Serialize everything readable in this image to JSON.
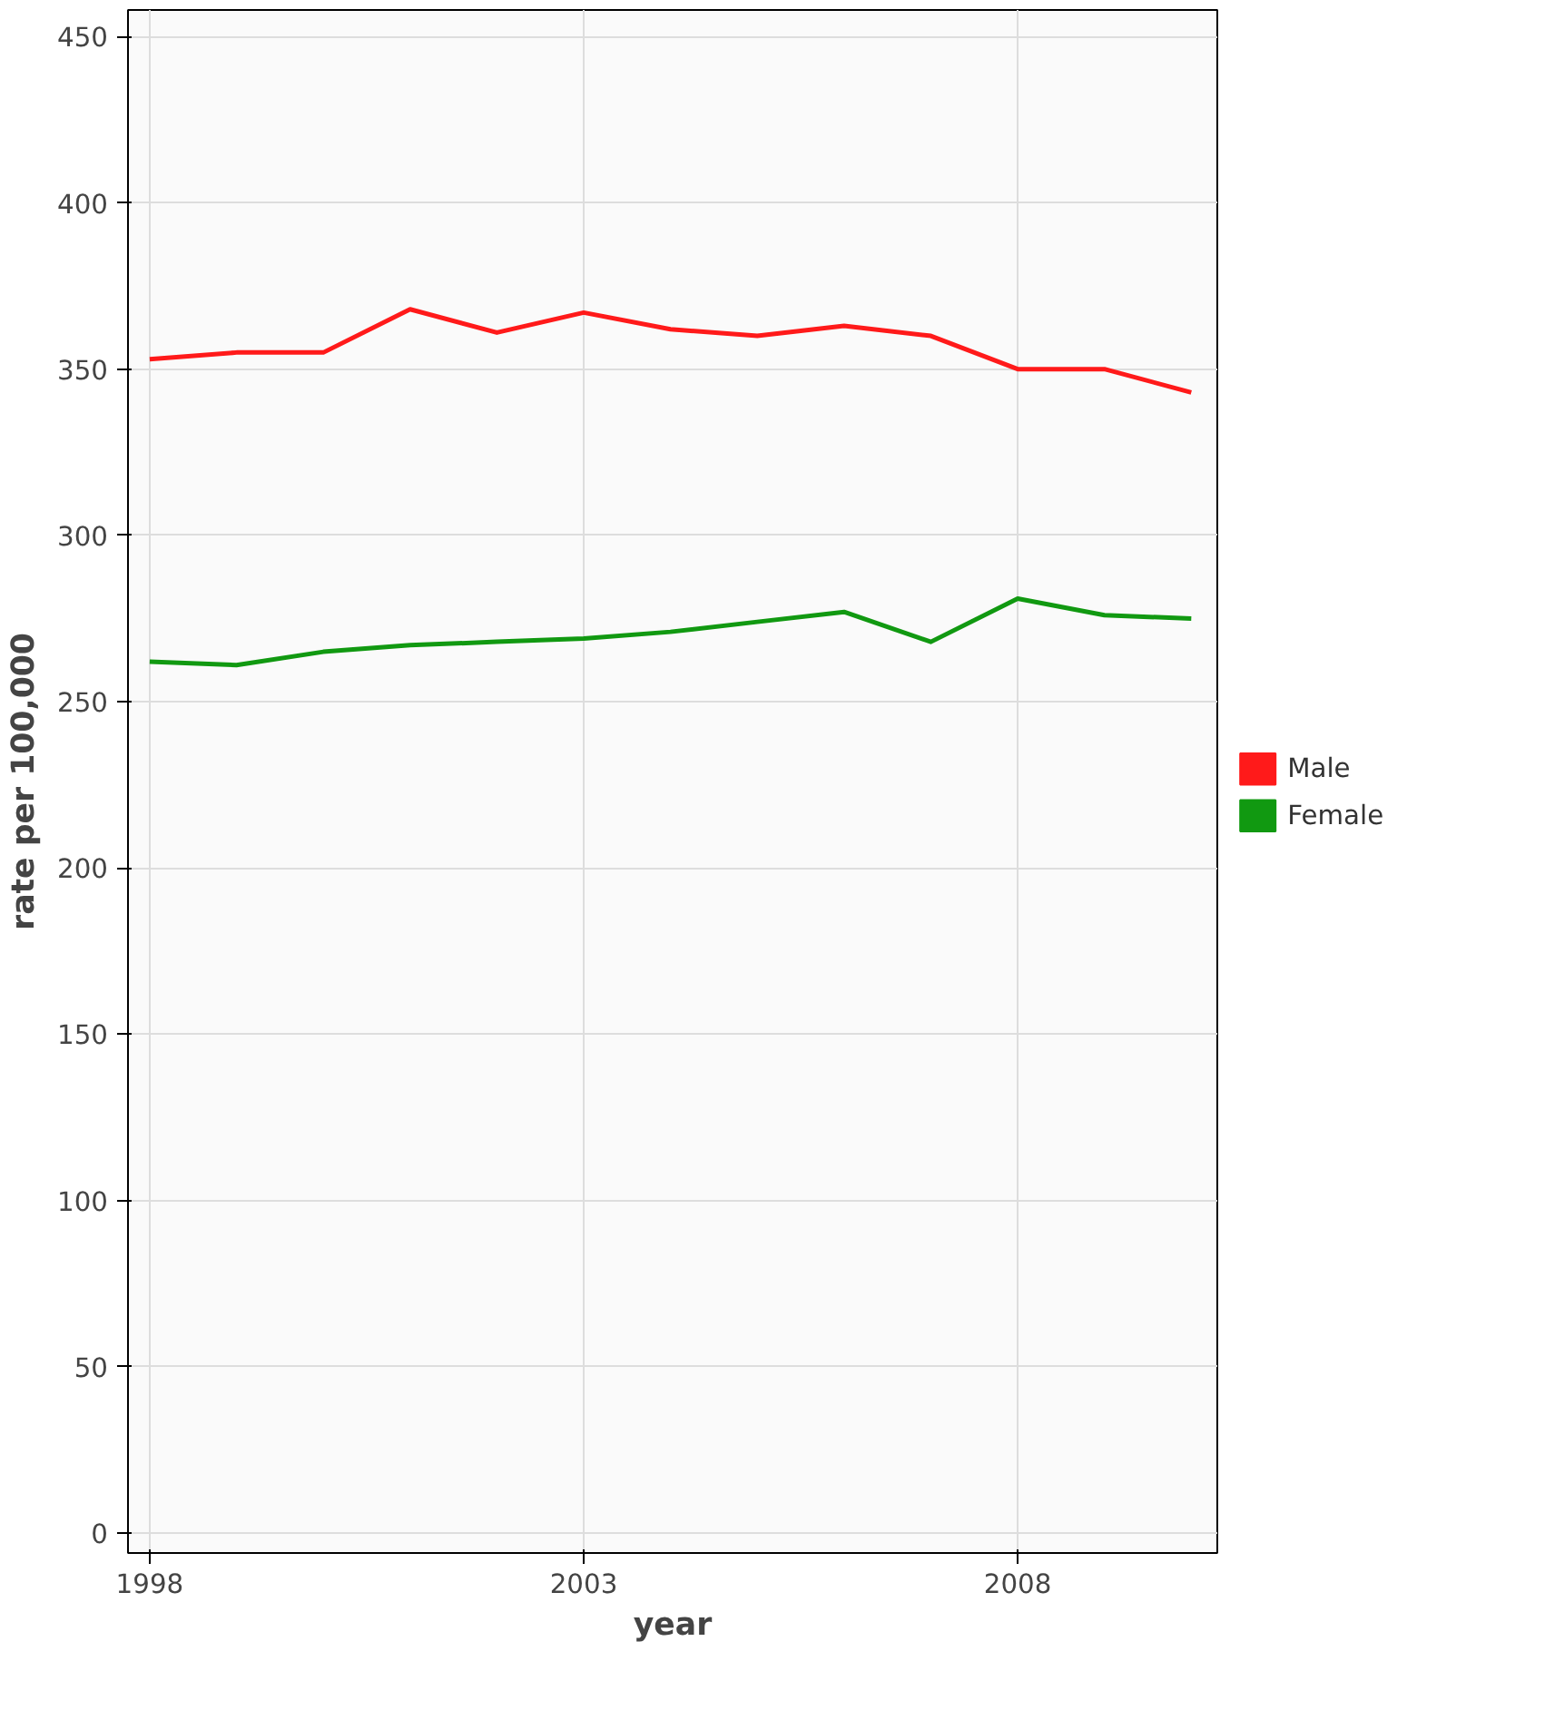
{
  "chart_data": {
    "type": "line",
    "xlabel": "year",
    "ylabel": "rate per 100,000",
    "x": [
      1998,
      1999,
      2000,
      2001,
      2002,
      2003,
      2004,
      2005,
      2006,
      2007,
      2008,
      2009,
      2010
    ],
    "series": [
      {
        "name": "Male",
        "color": "#ff1a1a",
        "values": [
          353,
          355,
          355,
          368,
          361,
          367,
          362,
          360,
          363,
          360,
          350,
          350,
          343
        ]
      },
      {
        "name": "Female",
        "color": "#119911",
        "values": [
          262,
          261,
          265,
          267,
          268,
          269,
          271,
          274,
          277,
          268,
          281,
          276,
          275
        ]
      }
    ],
    "xlim": [
      1997.75,
      2010.3
    ],
    "ylim": [
      -6,
      458
    ],
    "xticks": [
      1998,
      2003,
      2008
    ],
    "yticks": [
      0,
      50,
      100,
      150,
      200,
      250,
      300,
      350,
      400,
      450
    ],
    "grid": true,
    "legend": "right",
    "marker": "none",
    "line_style": "solid"
  }
}
